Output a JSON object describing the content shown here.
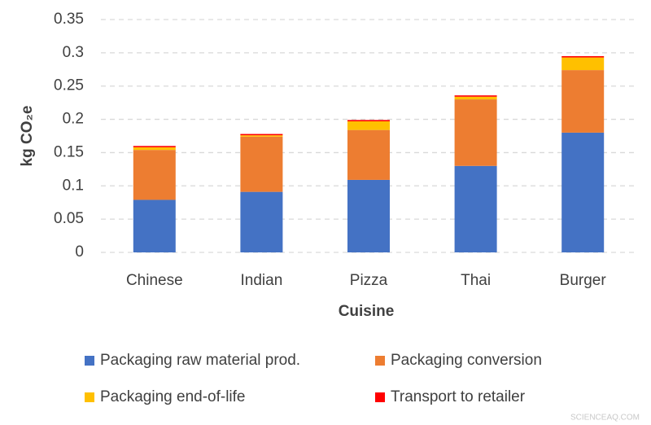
{
  "chart_data": {
    "type": "stacked-bar",
    "y_label": "kg CO₂e",
    "x_label": "Cuisine",
    "categories": [
      "Chinese",
      "Indian",
      "Pizza",
      "Thai",
      "Burger"
    ],
    "series": [
      {
        "name": "Packaging raw material prod.",
        "color": "#4472c4",
        "values": [
          0.079,
          0.091,
          0.109,
          0.13,
          0.18
        ]
      },
      {
        "name": "Packaging conversion",
        "color": "#ed7d31",
        "values": [
          0.075,
          0.083,
          0.075,
          0.1,
          0.094
        ]
      },
      {
        "name": "Packaging end-of-life",
        "color": "#ffc000",
        "values": [
          0.004,
          0.002,
          0.013,
          0.004,
          0.019
        ]
      },
      {
        "name": "Transport to retailer",
        "color": "#ff0000",
        "values": [
          0.002,
          0.002,
          0.002,
          0.002,
          0.002
        ]
      }
    ],
    "ylim": [
      0,
      0.35
    ],
    "yticks": [
      0,
      0.05,
      0.1,
      0.15,
      0.2,
      0.25,
      0.3,
      0.35
    ],
    "grid": true,
    "legend": "bottom",
    "watermark": "SCIENCEAQ.COM"
  }
}
